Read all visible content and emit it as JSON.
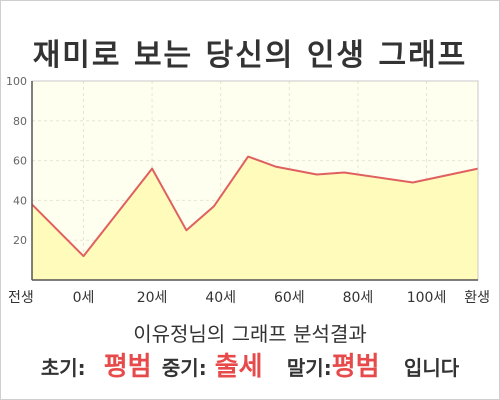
{
  "header": {
    "title": "재미로 보는 당신의 인생 그래프"
  },
  "chart_data": {
    "type": "area",
    "y_ticks": [
      "20",
      "40",
      "60",
      "80",
      "100"
    ],
    "ylim": [
      0,
      100
    ],
    "x_tick_labels": [
      "전생",
      "0세",
      "20세",
      "40세",
      "60세",
      "80세",
      "100세",
      "환생"
    ],
    "x_tick_positions": [
      -15,
      0,
      20,
      40,
      60,
      80,
      100,
      115
    ],
    "xlim": [
      -15,
      115
    ],
    "points": [
      {
        "x": -15,
        "y": 38
      },
      {
        "x": 0,
        "y": 12
      },
      {
        "x": 20,
        "y": 56
      },
      {
        "x": 30,
        "y": 25
      },
      {
        "x": 38,
        "y": 37
      },
      {
        "x": 48,
        "y": 62
      },
      {
        "x": 56,
        "y": 57
      },
      {
        "x": 68,
        "y": 53
      },
      {
        "x": 76,
        "y": 54
      },
      {
        "x": 96,
        "y": 49
      },
      {
        "x": 115,
        "y": 56
      }
    ],
    "grid": true,
    "line_color": "#e06060",
    "fill_color": "#fffbbb",
    "plot_bg": "#fffff0"
  },
  "summary": {
    "text": "이유정님의 그래프 분석결과"
  },
  "result": {
    "early_label": "초기:",
    "early_value": "평범",
    "mid_label": "중기:",
    "mid_value": "출세",
    "late_label": "말기:",
    "late_value": "평범",
    "ending": "입니다"
  }
}
